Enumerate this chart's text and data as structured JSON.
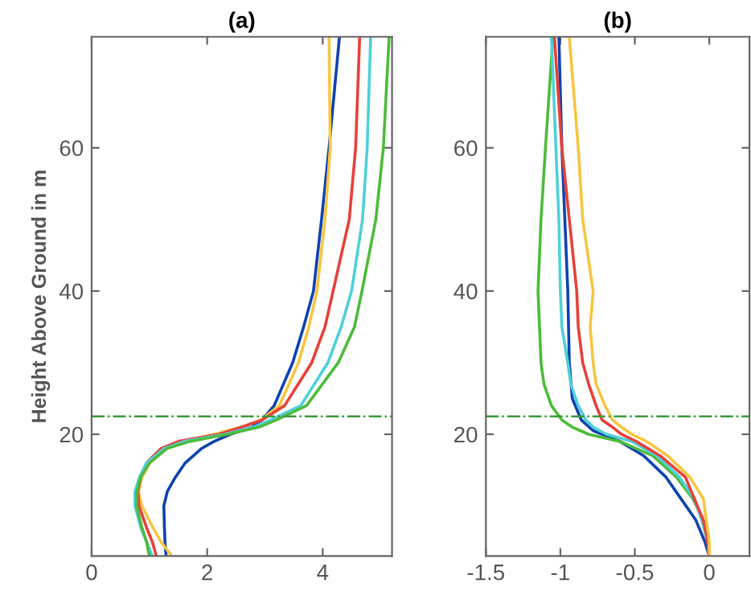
{
  "chart_data": [
    {
      "type": "line",
      "title": "(a)",
      "ylabel": "Height Above Ground in m",
      "xlim": [
        0,
        5.2
      ],
      "ylim": [
        3,
        75.5
      ],
      "xticks": [
        0,
        2,
        4
      ],
      "yticks": [
        20,
        40,
        60
      ],
      "grid": false,
      "ref_lines": [
        {
          "axis": "y",
          "value": 22.5,
          "color": "#3a9a3a",
          "line_style": "dashdot"
        }
      ],
      "series": [
        {
          "color": "#0e43b0",
          "x": [
            1.29,
            1.27,
            1.26,
            1.25,
            1.31,
            1.45,
            1.62,
            1.9,
            2.12,
            2.4,
            2.78,
            2.95,
            3.16,
            3.48,
            3.67,
            3.84,
            3.98,
            4.11,
            4.29
          ],
          "values": [
            3,
            5,
            7,
            10,
            12,
            14,
            16,
            18,
            19,
            20,
            21,
            22,
            24,
            30,
            35,
            40,
            50,
            60,
            75.5
          ]
        },
        {
          "color": "#f7c540",
          "x": [
            1.39,
            1.2,
            1.06,
            0.87,
            0.81,
            0.87,
            1.01,
            1.29,
            1.57,
            2.12,
            2.6,
            2.93,
            3.25,
            3.58,
            3.76,
            3.9,
            4.04,
            4.13,
            4.11
          ],
          "values": [
            3,
            5,
            7,
            10,
            12,
            14,
            16,
            18,
            19,
            20,
            21,
            22,
            24,
            30,
            35,
            40,
            50,
            60,
            75.5
          ]
        },
        {
          "color": "#e8403a",
          "x": [
            1.12,
            1.05,
            0.95,
            0.82,
            0.8,
            0.85,
            0.95,
            1.2,
            1.5,
            2.2,
            2.6,
            2.95,
            3.34,
            3.81,
            4.04,
            4.18,
            4.46,
            4.57,
            4.64
          ],
          "values": [
            3,
            5,
            7,
            10,
            12,
            14,
            16,
            18,
            19,
            20,
            21,
            22,
            24,
            30,
            35,
            40,
            50,
            60,
            75.5
          ]
        },
        {
          "color": "#4fd0d8",
          "x": [
            1.05,
            0.95,
            0.85,
            0.75,
            0.75,
            0.83,
            0.95,
            1.25,
            1.6,
            2.3,
            2.8,
            3.1,
            3.62,
            4.09,
            4.32,
            4.5,
            4.69,
            4.77,
            4.83
          ],
          "values": [
            3,
            5,
            7,
            10,
            12,
            14,
            16,
            18,
            19,
            20,
            21,
            22,
            24,
            30,
            35,
            40,
            50,
            60,
            75.5
          ]
        },
        {
          "color": "#4dbb3b",
          "x": [
            1.0,
            0.95,
            0.87,
            0.78,
            0.78,
            0.85,
            1.0,
            1.3,
            1.7,
            2.35,
            2.9,
            3.2,
            3.72,
            4.27,
            4.55,
            4.68,
            4.92,
            5.05,
            5.15
          ],
          "values": [
            3,
            5,
            7,
            10,
            12,
            14,
            16,
            18,
            19,
            20,
            21,
            22,
            24,
            30,
            35,
            40,
            50,
            60,
            75.5
          ]
        }
      ]
    },
    {
      "type": "line",
      "title": "(b)",
      "xlim": [
        -1.5,
        0.27
      ],
      "ylim": [
        3,
        75.5
      ],
      "xticks": [
        -1.5,
        -1,
        -0.5,
        0
      ],
      "yticks": [
        20,
        40,
        60
      ],
      "grid": false,
      "ref_lines": [
        {
          "axis": "y",
          "value": 22.5,
          "color": "#3a9a3a",
          "line_style": "dashdot"
        }
      ],
      "series": [
        {
          "color": "#0e43b0",
          "x": [
            0,
            -0.03,
            -0.09,
            -0.19,
            -0.29,
            -0.44,
            -0.6,
            -0.78,
            -0.86,
            -0.92,
            -0.94,
            -0.95,
            -0.97,
            -0.99,
            -1.01
          ],
          "values": [
            3,
            5,
            8,
            11,
            14,
            17,
            19,
            20.5,
            22,
            25,
            30,
            40,
            50,
            60,
            75.5
          ]
        },
        {
          "color": "#4dbb3b",
          "x": [
            0,
            -0.01,
            -0.04,
            -0.11,
            -0.22,
            -0.38,
            -0.6,
            -0.81,
            -0.92,
            -0.99,
            -1.06,
            -1.11,
            -1.13,
            -1.14,
            -1.15,
            -1.14,
            -1.13,
            -1.1,
            -1.05
          ],
          "values": [
            3,
            5,
            8,
            11,
            14,
            17,
            19,
            20,
            21,
            22,
            24,
            27,
            30,
            35,
            40,
            45,
            50,
            60,
            75.5
          ]
        },
        {
          "color": "#4fd0d8",
          "x": [
            0,
            -0.01,
            -0.05,
            -0.1,
            -0.2,
            -0.35,
            -0.52,
            -0.69,
            -0.78,
            -0.83,
            -0.88,
            -0.93,
            -0.95,
            -0.99,
            -1.0,
            -1.01,
            -1.03,
            -1.06
          ],
          "values": [
            3,
            5,
            8,
            11,
            14,
            17,
            19,
            20,
            21,
            22,
            24,
            27,
            30,
            35,
            40,
            50,
            60,
            75.5
          ]
        },
        {
          "color": "#e8403a",
          "x": [
            0,
            -0.01,
            -0.04,
            -0.1,
            -0.16,
            -0.33,
            -0.49,
            -0.59,
            -0.65,
            -0.72,
            -0.76,
            -0.81,
            -0.85,
            -0.88,
            -0.89,
            -0.94,
            -0.99,
            -1.04
          ],
          "values": [
            3,
            5,
            8,
            11,
            14,
            17,
            19,
            20,
            21,
            22,
            24,
            27,
            30,
            35,
            40,
            50,
            60,
            75.5
          ]
        },
        {
          "color": "#f7c540",
          "x": [
            0,
            0,
            -0.02,
            -0.04,
            -0.13,
            -0.28,
            -0.42,
            -0.52,
            -0.59,
            -0.65,
            -0.7,
            -0.76,
            -0.78,
            -0.8,
            -0.78,
            -0.85,
            -0.88,
            -0.94
          ],
          "values": [
            3,
            5,
            8,
            11,
            14,
            17,
            19,
            20,
            21,
            22,
            24,
            27,
            30,
            35,
            40,
            50,
            60,
            75.5
          ]
        }
      ]
    }
  ]
}
